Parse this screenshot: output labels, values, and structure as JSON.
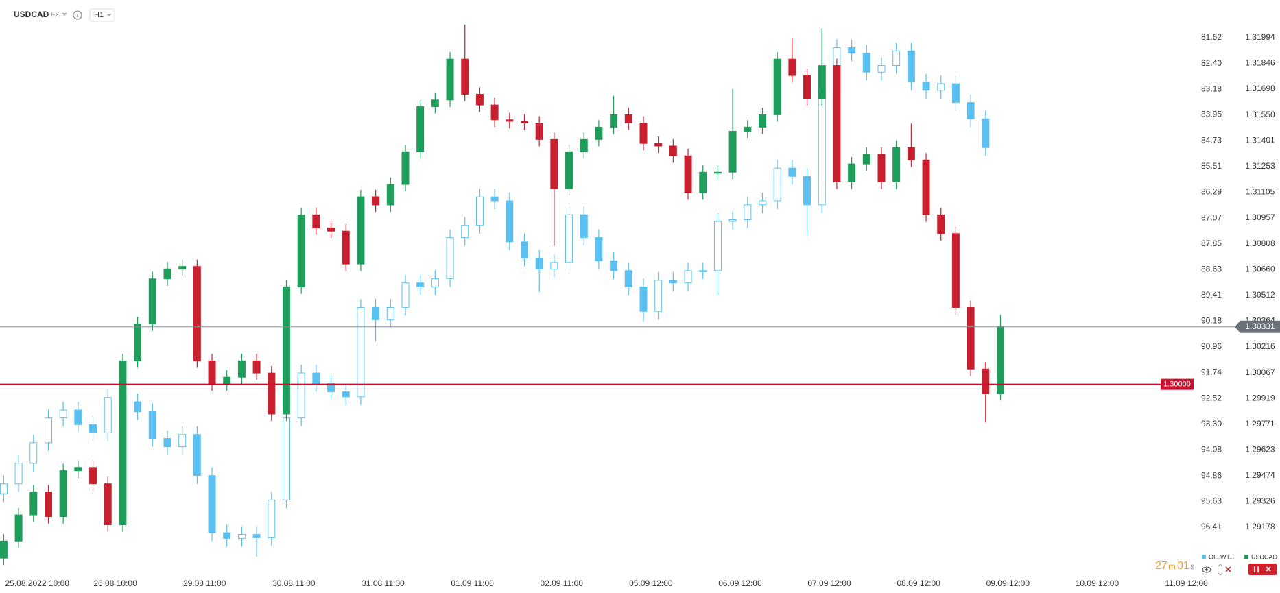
{
  "header": {
    "symbol": "USDCAD",
    "market": "FX",
    "interval": "H1"
  },
  "timer": [
    "27",
    "m",
    "01",
    "s"
  ],
  "chart_data": {
    "type": "candlestick",
    "xlim": [
      0,
      320
    ],
    "xticks": [
      {
        "value": 10,
        "label": "25.08.2022  10:00"
      },
      {
        "value": 31,
        "label": "26.08  10:00"
      },
      {
        "value": 55,
        "label": "29.08  11:00"
      },
      {
        "value": 79,
        "label": "30.08  11:00"
      },
      {
        "value": 103,
        "label": "31.08  11:00"
      },
      {
        "value": 127,
        "label": "01.09  11:00"
      },
      {
        "value": 151,
        "label": "02.09  11:00"
      },
      {
        "value": 175,
        "label": "05.09  12:00"
      },
      {
        "value": 199,
        "label": "06.09  12:00"
      },
      {
        "value": 223,
        "label": "07.09  12:00"
      },
      {
        "value": 247,
        "label": "08.09  12:00"
      },
      {
        "value": 271,
        "label": "09.09  12:00"
      },
      {
        "value": 295,
        "label": "10.09  12:00"
      },
      {
        "value": 319,
        "label": "11.09  12:00"
      }
    ],
    "ylim": [
      1.2891,
      1.32211
    ],
    "yticks": [
      1.31994,
      1.31846,
      1.31698,
      {
        "value": 1.3155,
        "label": "1.31550"
      },
      1.31401,
      1.31253,
      1.31105,
      1.30957,
      1.30808,
      {
        "value": 1.3066,
        "label": "1.30660"
      },
      1.30512,
      1.30364,
      1.30216,
      1.30067,
      1.29919,
      1.29771,
      1.29623,
      1.29474,
      1.29326,
      1.29178
    ],
    "y2lim": [
      97.82,
      80.48
    ],
    "y2ticks": [
      81.62,
      {
        "value": 82.4,
        "label": "82.40"
      },
      83.18,
      83.95,
      84.73,
      85.51,
      86.29,
      87.07,
      87.85,
      88.63,
      89.41,
      90.18,
      90.96,
      91.74,
      92.52,
      {
        "value": 93.3,
        "label": "93.30"
      },
      94.08,
      94.86,
      95.63,
      96.41
    ],
    "series": [
      {
        "name": "OIL.WT...",
        "color": "#5bc0f0",
        "axis": "y2",
        "x": [
          1,
          5,
          9,
          13,
          17,
          21,
          25,
          29,
          33,
          37,
          41,
          45,
          49,
          53,
          57,
          61,
          65,
          69,
          73,
          77,
          81,
          85,
          89,
          93,
          97,
          101,
          105,
          109,
          113,
          117,
          121,
          125,
          129,
          133,
          137,
          141,
          145,
          149,
          153,
          157,
          161,
          165,
          169,
          173,
          177,
          181,
          185,
          189,
          193,
          197,
          201,
          205,
          209,
          213,
          217,
          221,
          225,
          229,
          233,
          237,
          241,
          245,
          249,
          253,
          257,
          261,
          265
        ],
        "open": [
          95.4,
          95.1,
          94.48,
          93.86,
          93.11,
          92.87,
          93.31,
          93.56,
          92.49,
          92.62,
          92.92,
          93.73,
          93.98,
          93.61,
          94.85,
          96.58,
          96.75,
          96.63,
          96.73,
          95.59,
          93.11,
          91.75,
          92.07,
          92.32,
          92.47,
          89.77,
          90.14,
          89.77,
          89.03,
          89.15,
          88.9,
          87.66,
          87.29,
          86.43,
          86.55,
          87.79,
          88.28,
          88.61,
          88.41,
          86.97,
          87.66,
          88.36,
          88.66,
          89.15,
          89.89,
          88.95,
          89.03,
          88.66,
          88.66,
          87.17,
          87.12,
          86.67,
          86.55,
          85.56,
          85.81,
          86.67,
          83.21,
          81.92,
          82.09,
          82.66,
          82.46,
          82.02,
          82.96,
          83.21,
          83.01,
          83.58,
          84.07
        ],
        "high": [
          95.65,
          95.35,
          94.73,
          94.11,
          93.36,
          93.56,
          93.81,
          93.81,
          92.87,
          93.17,
          93.98,
          94.23,
          94.23,
          95.1,
          96.83,
          97.0,
          97.0,
          97.3,
          96.98,
          95.84,
          93.36,
          92.32,
          92.57,
          92.72,
          92.72,
          90.8,
          90.39,
          90.02,
          89.4,
          89.4,
          89.15,
          87.91,
          87.54,
          86.8,
          88.04,
          88.53,
          89.3,
          88.86,
          88.66,
          87.91,
          88.61,
          88.91,
          89.4,
          90.2,
          90.14,
          89.28,
          89.28,
          88.91,
          89.4,
          87.42,
          87.37,
          86.92,
          86.8,
          86.06,
          87.6,
          86.92,
          83.46,
          82.34,
          82.91,
          82.91,
          82.71,
          83.21,
          83.46,
          83.46,
          83.83,
          84.32,
          85.19
        ],
        "low": [
          94.85,
          94.23,
          93.61,
          92.86,
          92.62,
          92.62,
          93.06,
          92.24,
          92.24,
          92.37,
          92.67,
          93.48,
          93.36,
          93.36,
          94.6,
          96.33,
          96.38,
          96.38,
          95.34,
          92.86,
          91.5,
          91.5,
          91.82,
          92.07,
          89.52,
          89.52,
          89.52,
          88.78,
          88.78,
          88.65,
          87.41,
          87.04,
          86.18,
          86.18,
          86.3,
          87.54,
          88.03,
          88.16,
          86.72,
          86.72,
          87.41,
          88.11,
          88.41,
          88.9,
          88.7,
          88.7,
          88.41,
          88.41,
          86.92,
          86.87,
          86.42,
          86.3,
          85.31,
          85.31,
          85.56,
          82.96,
          81.67,
          81.67,
          81.84,
          82.21,
          81.77,
          81.77,
          82.71,
          82.76,
          82.76,
          83.33,
          83.82
        ],
        "close": [
          95.1,
          94.48,
          93.86,
          93.11,
          92.87,
          93.31,
          93.56,
          92.49,
          92.62,
          92.92,
          93.73,
          93.98,
          93.61,
          94.85,
          96.58,
          96.75,
          96.63,
          96.73,
          95.59,
          93.11,
          91.75,
          92.07,
          92.32,
          92.47,
          89.77,
          90.14,
          89.77,
          89.03,
          89.15,
          88.9,
          87.66,
          87.29,
          86.43,
          86.55,
          87.79,
          88.28,
          88.61,
          88.41,
          86.97,
          87.66,
          88.36,
          88.66,
          89.15,
          89.89,
          88.95,
          89.03,
          88.66,
          88.66,
          87.17,
          87.12,
          86.67,
          86.55,
          85.56,
          85.81,
          86.67,
          83.21,
          81.92,
          82.09,
          82.66,
          82.46,
          82.02,
          82.96,
          83.21,
          83.01,
          83.58,
          84.07,
          84.94
        ]
      },
      {
        "name": "USDCAD",
        "color": "#1e9e5a",
        "down_color": "#c8202f",
        "x": [
          1,
          5,
          9,
          13,
          17,
          21,
          25,
          29,
          33,
          37,
          41,
          45,
          49,
          53,
          57,
          61,
          65,
          69,
          73,
          77,
          81,
          85,
          89,
          93,
          97,
          101,
          105,
          109,
          113,
          117,
          121,
          125,
          129,
          133,
          137,
          141,
          145,
          149,
          153,
          157,
          161,
          165,
          169,
          173,
          177,
          181,
          185,
          189,
          193,
          197,
          201,
          205,
          209,
          213,
          217,
          221,
          225,
          229,
          233,
          237,
          241,
          245,
          249,
          253,
          257,
          261,
          265,
          269
        ],
        "open": [
          1.29,
          1.29098,
          1.29249,
          1.29381,
          1.29239,
          1.29503,
          1.29522,
          1.29428,
          1.29192,
          1.30135,
          1.30348,
          1.30607,
          1.30664,
          1.30678,
          1.30135,
          1.30003,
          1.30041,
          1.30135,
          1.30065,
          1.29829,
          1.3056,
          1.30975,
          1.309,
          1.30881,
          1.30692,
          1.31079,
          1.31032,
          1.3115,
          1.31338,
          1.31598,
          1.31636,
          1.31871,
          1.31669,
          1.31607,
          1.31522,
          1.31513,
          1.31503,
          1.31409,
          1.31126,
          1.31338,
          1.31409,
          1.3148,
          1.31551,
          1.31503,
          1.31386,
          1.31371,
          1.31315,
          1.31102,
          1.3122,
          1.3122,
          1.31456,
          1.3148,
          1.31551,
          1.31871,
          1.31777,
          1.31645,
          1.31834,
          1.31164,
          1.31268,
          1.31324,
          1.31164,
          1.31362,
          1.31291,
          1.30975,
          1.30867,
          1.30442,
          1.30088,
          1.29947
        ],
        "high": [
          1.29138,
          1.29289,
          1.29421,
          1.29421,
          1.29543,
          1.29562,
          1.29562,
          1.29468,
          1.30175,
          1.30388,
          1.30647,
          1.30704,
          1.30718,
          1.30718,
          1.30175,
          1.30081,
          1.30175,
          1.30175,
          1.30105,
          1.306,
          1.31015,
          1.31015,
          1.3094,
          1.30921,
          1.31119,
          1.31119,
          1.3119,
          1.31378,
          1.31638,
          1.31676,
          1.31911,
          1.3207,
          1.31709,
          1.31647,
          1.31562,
          1.31553,
          1.31543,
          1.31449,
          1.31378,
          1.31449,
          1.3152,
          1.3166,
          1.31591,
          1.31543,
          1.31426,
          1.31411,
          1.31355,
          1.3126,
          1.3126,
          1.317,
          1.3152,
          1.31591,
          1.31911,
          1.3199,
          1.31817,
          1.3205,
          1.31874,
          1.31308,
          1.31364,
          1.31364,
          1.31402,
          1.315,
          1.31331,
          1.31015,
          1.30907,
          1.30482,
          1.30128,
          1.304
        ],
        "low": [
          1.2896,
          1.29058,
          1.29209,
          1.29199,
          1.29199,
          1.29463,
          1.29388,
          1.29152,
          1.29152,
          1.30095,
          1.30308,
          1.30567,
          1.30624,
          1.30095,
          1.29963,
          1.29963,
          1.30001,
          1.30025,
          1.29789,
          1.29789,
          1.3052,
          1.3086,
          1.30841,
          1.30652,
          1.30652,
          1.30992,
          1.30992,
          1.3111,
          1.31298,
          1.31558,
          1.31596,
          1.31629,
          1.31567,
          1.31482,
          1.31473,
          1.31463,
          1.31369,
          1.30796,
          1.31086,
          1.31298,
          1.31369,
          1.3144,
          1.31463,
          1.31346,
          1.31331,
          1.31275,
          1.31062,
          1.31062,
          1.3118,
          1.3118,
          1.31416,
          1.3144,
          1.31511,
          1.31737,
          1.31605,
          1.31605,
          1.31124,
          1.31124,
          1.31228,
          1.31124,
          1.31124,
          1.31251,
          1.30935,
          1.30827,
          1.30402,
          1.30048,
          1.2978,
          1.29907
        ],
        "close": [
          1.29098,
          1.29249,
          1.29381,
          1.29239,
          1.29503,
          1.29522,
          1.29428,
          1.29192,
          1.30135,
          1.30348,
          1.30607,
          1.30664,
          1.30678,
          1.30135,
          1.30003,
          1.30041,
          1.30135,
          1.30065,
          1.29829,
          1.3056,
          1.30975,
          1.309,
          1.30881,
          1.30692,
          1.31079,
          1.31032,
          1.3115,
          1.31338,
          1.31598,
          1.31636,
          1.31871,
          1.31669,
          1.31607,
          1.31522,
          1.31513,
          1.31503,
          1.31409,
          1.31126,
          1.31338,
          1.31409,
          1.3148,
          1.31551,
          1.31503,
          1.31386,
          1.31371,
          1.31315,
          1.31102,
          1.3122,
          1.3122,
          1.31456,
          1.3148,
          1.31551,
          1.31871,
          1.31777,
          1.31645,
          1.31834,
          1.31164,
          1.31268,
          1.31324,
          1.31164,
          1.31362,
          1.31291,
          1.30975,
          1.30867,
          1.30442,
          1.30088,
          1.29947,
          1.30331
        ]
      }
    ],
    "current_price": 1.30331,
    "alert_level": {
      "value": 1.3,
      "label": "1.30000"
    }
  }
}
